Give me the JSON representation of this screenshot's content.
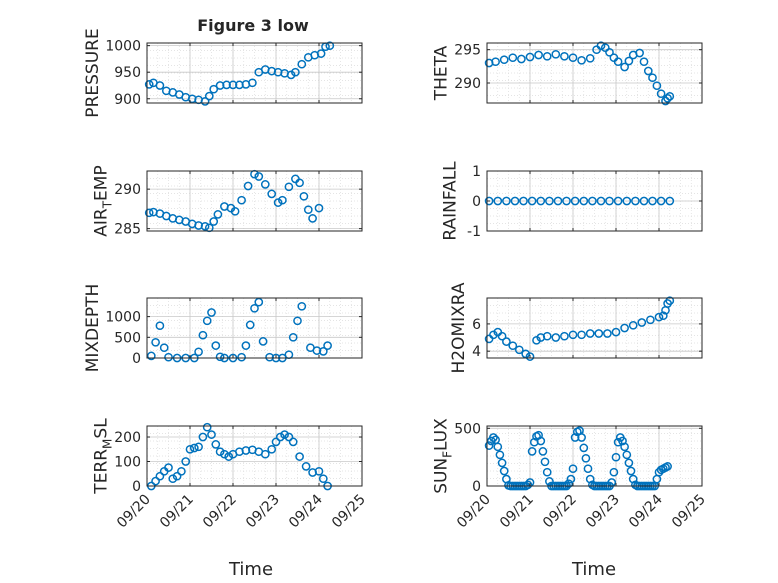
{
  "figure": {
    "title": "Figure 3 low",
    "xlabel": "Time",
    "marker_color": "#0072BD"
  },
  "chart_data": [
    {
      "type": "scatter",
      "ylabel": "PRESSURE",
      "xticklabels": [],
      "yticks": [
        900,
        950,
        1000
      ],
      "ylim": [
        892,
        1005
      ],
      "xlim": [
        0,
        5
      ],
      "grid": true,
      "x": [
        0.05,
        0.15,
        0.3,
        0.45,
        0.6,
        0.75,
        0.9,
        1.05,
        1.2,
        1.35,
        1.45,
        1.55,
        1.7,
        1.85,
        2.0,
        2.15,
        2.3,
        2.45,
        2.6,
        2.75,
        2.9,
        3.05,
        3.2,
        3.35,
        3.45,
        3.6,
        3.75,
        3.9,
        4.05,
        4.15,
        4.25
      ],
      "y": [
        927,
        930,
        925,
        915,
        912,
        908,
        903,
        900,
        898,
        895,
        905,
        918,
        925,
        926,
        926,
        926,
        927,
        930,
        950,
        955,
        952,
        950,
        948,
        945,
        950,
        965,
        978,
        982,
        985,
        998,
        1000
      ]
    },
    {
      "type": "scatter",
      "ylabel": "THETA",
      "xticklabels": [],
      "yticks": [
        290,
        295
      ],
      "ylim": [
        287.0,
        296.0
      ],
      "xlim": [
        0,
        5
      ],
      "grid": true,
      "x": [
        0.05,
        0.2,
        0.4,
        0.6,
        0.8,
        1.0,
        1.2,
        1.4,
        1.6,
        1.8,
        2.0,
        2.2,
        2.4,
        2.55,
        2.65,
        2.75,
        2.85,
        2.95,
        3.05,
        3.2,
        3.3,
        3.4,
        3.55,
        3.65,
        3.75,
        3.85,
        3.95,
        4.05,
        4.15,
        4.2,
        4.25
      ],
      "y": [
        293.0,
        293.2,
        293.5,
        293.8,
        293.6,
        293.9,
        294.2,
        294.0,
        294.3,
        294.0,
        293.8,
        293.4,
        293.7,
        295.0,
        295.6,
        295.3,
        294.6,
        293.8,
        293.2,
        292.4,
        293.3,
        294.2,
        294.5,
        293.2,
        291.8,
        290.8,
        289.6,
        288.4,
        287.3,
        287.7,
        288.0
      ]
    },
    {
      "type": "scatter",
      "ylabel": "AIR_TEMP",
      "xticklabels": [],
      "yticks": [
        285,
        290
      ],
      "ylim": [
        284.7,
        292.3
      ],
      "xlim": [
        0,
        5
      ],
      "grid": true,
      "x": [
        0.05,
        0.15,
        0.3,
        0.45,
        0.6,
        0.75,
        0.9,
        1.05,
        1.2,
        1.35,
        1.45,
        1.55,
        1.65,
        1.8,
        1.95,
        2.05,
        2.2,
        2.35,
        2.5,
        2.6,
        2.75,
        2.9,
        3.05,
        3.15,
        3.3,
        3.45,
        3.55,
        3.65,
        3.75,
        3.85,
        4.0
      ],
      "y": [
        287.0,
        287.1,
        286.9,
        286.6,
        286.3,
        286.1,
        285.9,
        285.6,
        285.4,
        285.3,
        285.1,
        285.9,
        286.8,
        287.8,
        287.6,
        287.2,
        288.6,
        290.4,
        291.9,
        291.6,
        290.6,
        289.4,
        288.3,
        288.6,
        290.3,
        291.3,
        290.8,
        289.1,
        287.4,
        286.3,
        287.6
      ]
    },
    {
      "type": "scatter",
      "ylabel": "RAINFALL",
      "xticklabels": [],
      "yticks": [
        -1,
        0,
        1
      ],
      "ylim": [
        -1,
        1
      ],
      "xlim": [
        0,
        5
      ],
      "grid": true,
      "x": [
        0.05,
        0.25,
        0.45,
        0.65,
        0.85,
        1.05,
        1.25,
        1.45,
        1.65,
        1.85,
        2.05,
        2.25,
        2.45,
        2.65,
        2.85,
        3.05,
        3.25,
        3.45,
        3.65,
        3.85,
        4.05,
        4.25
      ],
      "y": [
        0,
        0,
        0,
        0,
        0,
        0,
        0,
        0,
        0,
        0,
        0,
        0,
        0,
        0,
        0,
        0,
        0,
        0,
        0,
        0,
        0,
        0
      ]
    },
    {
      "type": "scatter",
      "ylabel": "MIXDEPTH",
      "xticklabels": [],
      "yticks": [
        0,
        500,
        1000
      ],
      "ylim": [
        0,
        1450
      ],
      "xlim": [
        0,
        5
      ],
      "grid": true,
      "x": [
        0.1,
        0.2,
        0.3,
        0.4,
        0.5,
        0.7,
        0.9,
        1.1,
        1.2,
        1.3,
        1.4,
        1.5,
        1.6,
        1.7,
        1.8,
        2.0,
        2.2,
        2.3,
        2.4,
        2.5,
        2.6,
        2.7,
        2.85,
        3.0,
        3.15,
        3.3,
        3.4,
        3.5,
        3.6,
        3.8,
        3.95,
        4.1,
        4.2
      ],
      "y": [
        50,
        380,
        780,
        250,
        20,
        0,
        0,
        0,
        150,
        550,
        900,
        1100,
        300,
        30,
        0,
        0,
        20,
        300,
        800,
        1200,
        1350,
        400,
        20,
        0,
        0,
        80,
        500,
        900,
        1250,
        250,
        180,
        160,
        300
      ]
    },
    {
      "type": "scatter",
      "ylabel": "H2OMIXRA",
      "xticklabels": [],
      "yticks": [
        4,
        6
      ],
      "ylim": [
        3.5,
        7.9
      ],
      "xlim": [
        0,
        5
      ],
      "grid": true,
      "x": [
        0.05,
        0.15,
        0.25,
        0.35,
        0.45,
        0.6,
        0.75,
        0.9,
        1.0,
        1.15,
        1.25,
        1.4,
        1.6,
        1.8,
        2.0,
        2.2,
        2.4,
        2.6,
        2.8,
        3.0,
        3.2,
        3.4,
        3.6,
        3.8,
        4.0,
        4.1,
        4.15,
        4.2,
        4.25
      ],
      "y": [
        4.9,
        5.2,
        5.4,
        5.1,
        4.7,
        4.4,
        4.1,
        3.8,
        3.6,
        4.8,
        5.0,
        5.1,
        5.0,
        5.1,
        5.2,
        5.2,
        5.3,
        5.3,
        5.3,
        5.4,
        5.7,
        5.9,
        6.1,
        6.3,
        6.5,
        6.6,
        7.0,
        7.5,
        7.7
      ]
    },
    {
      "type": "scatter",
      "ylabel": "TERR_MSL",
      "xticklabels": [
        "09/20",
        "09/21",
        "09/22",
        "09/23",
        "09/24",
        "09/25"
      ],
      "yticks": [
        0,
        100,
        200
      ],
      "ylim": [
        0,
        245
      ],
      "xlim": [
        0,
        5
      ],
      "grid": true,
      "x": [
        0.1,
        0.2,
        0.3,
        0.4,
        0.5,
        0.6,
        0.7,
        0.8,
        0.9,
        1.0,
        1.1,
        1.2,
        1.3,
        1.4,
        1.5,
        1.6,
        1.7,
        1.8,
        1.9,
        2.0,
        2.15,
        2.3,
        2.45,
        2.6,
        2.75,
        2.9,
        3.0,
        3.1,
        3.2,
        3.3,
        3.4,
        3.55,
        3.7,
        3.85,
        4.0,
        4.1,
        4.2
      ],
      "y": [
        0,
        20,
        40,
        60,
        75,
        30,
        40,
        60,
        100,
        150,
        155,
        160,
        200,
        240,
        210,
        170,
        140,
        130,
        120,
        130,
        140,
        145,
        148,
        140,
        130,
        150,
        180,
        200,
        210,
        200,
        180,
        120,
        80,
        55,
        60,
        30,
        0
      ]
    },
    {
      "type": "scatter",
      "ylabel": "SUN_FLUX",
      "xticklabels": [
        "09/20",
        "09/21",
        "09/22",
        "09/23",
        "09/24",
        "09/25"
      ],
      "yticks": [
        0,
        500
      ],
      "ylim": [
        0,
        520
      ],
      "xlim": [
        0,
        5
      ],
      "grid": true,
      "x": [
        0.05,
        0.1,
        0.15,
        0.2,
        0.25,
        0.3,
        0.35,
        0.4,
        0.45,
        0.5,
        0.55,
        0.6,
        0.65,
        0.7,
        0.75,
        0.8,
        0.85,
        0.9,
        0.95,
        1.0,
        1.05,
        1.1,
        1.15,
        1.2,
        1.25,
        1.3,
        1.35,
        1.4,
        1.45,
        1.5,
        1.55,
        1.6,
        1.65,
        1.7,
        1.75,
        1.8,
        1.85,
        1.9,
        1.95,
        2.0,
        2.05,
        2.1,
        2.15,
        2.2,
        2.25,
        2.3,
        2.35,
        2.4,
        2.45,
        2.5,
        2.55,
        2.6,
        2.65,
        2.7,
        2.75,
        2.8,
        2.85,
        2.9,
        2.95,
        3.0,
        3.05,
        3.1,
        3.15,
        3.2,
        3.25,
        3.3,
        3.35,
        3.4,
        3.45,
        3.5,
        3.55,
        3.6,
        3.65,
        3.7,
        3.75,
        3.8,
        3.85,
        3.9,
        3.95,
        4.0,
        4.05,
        4.1,
        4.15,
        4.2
      ],
      "y": [
        350,
        390,
        420,
        400,
        340,
        270,
        200,
        130,
        60,
        5,
        0,
        0,
        0,
        0,
        0,
        0,
        0,
        0,
        10,
        30,
        300,
        380,
        430,
        440,
        390,
        300,
        210,
        120,
        40,
        0,
        0,
        0,
        0,
        0,
        0,
        0,
        0,
        20,
        60,
        150,
        420,
        470,
        480,
        420,
        330,
        240,
        150,
        60,
        10,
        0,
        0,
        0,
        0,
        0,
        0,
        0,
        0,
        30,
        120,
        250,
        380,
        420,
        390,
        340,
        270,
        200,
        130,
        60,
        10,
        0,
        0,
        0,
        0,
        0,
        0,
        0,
        0,
        0,
        60,
        120,
        140,
        150,
        160,
        170
      ]
    }
  ]
}
